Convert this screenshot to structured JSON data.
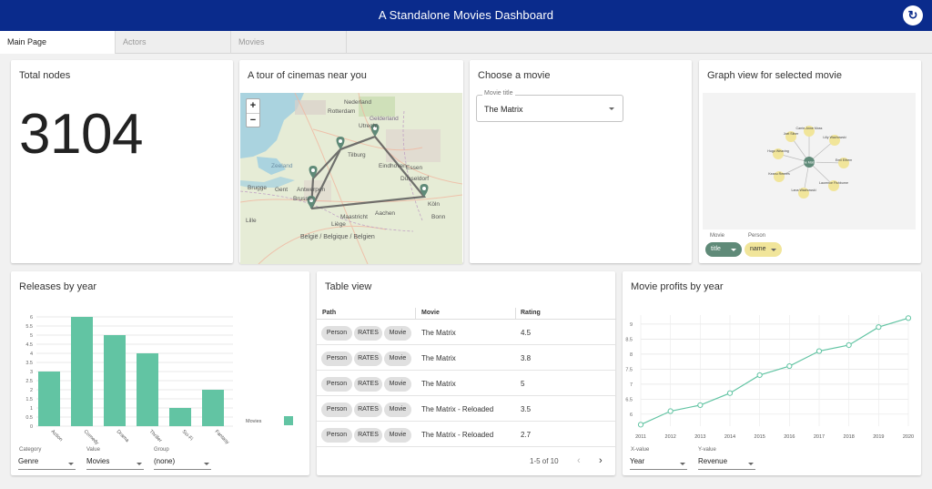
{
  "header": {
    "title": "A Standalone Movies Dashboard",
    "refresh_icon": "refresh-icon"
  },
  "tabs": [
    {
      "label": "Main Page",
      "active": true
    },
    {
      "label": "Actors",
      "active": false
    },
    {
      "label": "Movies",
      "active": false
    }
  ],
  "total_nodes": {
    "title": "Total nodes",
    "value": "3104"
  },
  "map_card": {
    "title": "A tour of cinemas near you",
    "zoom_in": "+",
    "zoom_out": "−",
    "places": [
      {
        "name": "Rotterdam"
      },
      {
        "name": "Nederland"
      },
      {
        "name": "Utrecht"
      },
      {
        "name": "Gelderland"
      },
      {
        "name": "Zeeland"
      },
      {
        "name": "Tilburg"
      },
      {
        "name": "Eindhoven"
      },
      {
        "name": "Antwerpen"
      },
      {
        "name": "Brussel"
      },
      {
        "name": "Gent"
      },
      {
        "name": "Brugge"
      },
      {
        "name": "Essen"
      },
      {
        "name": "Düsseldorf"
      },
      {
        "name": "Köln"
      },
      {
        "name": "Bonn"
      },
      {
        "name": "Maastricht"
      },
      {
        "name": "Aachen"
      },
      {
        "name": "Liège"
      },
      {
        "name": "België / Belgique / Belgien"
      },
      {
        "name": "Lille"
      }
    ]
  },
  "choose_movie": {
    "title": "Choose a movie",
    "field_label": "Movie title",
    "value": "The Matrix"
  },
  "graph_view": {
    "title": "Graph view for selected movie",
    "center": "The Matrix",
    "people": [
      "Carrie-Anne Moss",
      "Lilly Wachowski",
      "Emil Eifrem",
      "Laurence Fishburne",
      "Lana Wachowski",
      "Keanu Reeves",
      "Hugo Weaving",
      "Joel Silver"
    ],
    "movie_label": "Movie",
    "movie_value": "title",
    "person_label": "Person",
    "person_value": "name",
    "movie_color": "#5f8a78",
    "person_color": "#f1e59a"
  },
  "releases": {
    "title": "Releases by year",
    "controls": [
      {
        "label": "Category",
        "value": "Genre"
      },
      {
        "label": "Value",
        "value": "Movies"
      },
      {
        "label": "Group",
        "value": "(none)"
      }
    ],
    "legend_label": "Movies"
  },
  "table_view": {
    "title": "Table view",
    "columns": [
      "Path",
      "Movie",
      "Rating"
    ],
    "rows": [
      {
        "path": [
          "Person",
          "RATES",
          "Movie"
        ],
        "movie": "The Matrix",
        "rating": "4.5"
      },
      {
        "path": [
          "Person",
          "RATES",
          "Movie"
        ],
        "movie": "The Matrix",
        "rating": "3.8"
      },
      {
        "path": [
          "Person",
          "RATES",
          "Movie"
        ],
        "movie": "The Matrix",
        "rating": "5"
      },
      {
        "path": [
          "Person",
          "RATES",
          "Movie"
        ],
        "movie": "The Matrix - Reloaded",
        "rating": "3.5"
      },
      {
        "path": [
          "Person",
          "RATES",
          "Movie"
        ],
        "movie": "The Matrix - Reloaded",
        "rating": "2.7"
      }
    ],
    "pagination": "1-5 of 10",
    "prev_icon": "chevron-left-icon",
    "next_icon": "chevron-right-icon"
  },
  "profits": {
    "title": "Movie profits by year",
    "controls": [
      {
        "label": "X-value",
        "value": "Year"
      },
      {
        "label": "Y-value",
        "value": "Revenue"
      }
    ]
  },
  "chart_data": [
    {
      "type": "bar",
      "categories": [
        "Action",
        "Comedy",
        "Drama",
        "Thriller",
        "Sci-Fi",
        "Fantasy"
      ],
      "tick_labels": [
        "Action",
        "Comedy",
        "Drama",
        "Thriller",
        "Sci-Fi",
        "Fantasy"
      ],
      "series": [
        {
          "name": "Movies",
          "values": [
            3,
            6,
            5,
            4,
            1,
            2
          ]
        }
      ],
      "ylim": [
        0,
        6
      ],
      "yticks": [
        "0",
        "0.5",
        "1",
        "1.5",
        "2",
        "2.5",
        "3",
        "3.5",
        "4",
        "4.5",
        "5",
        "5.5",
        "6"
      ],
      "grid": true,
      "legend": "right",
      "color": "#62c4a3"
    },
    {
      "type": "line",
      "x": [
        "2011",
        "2012",
        "2013",
        "2014",
        "2015",
        "2016",
        "2017",
        "2018",
        "2019",
        "2020"
      ],
      "values": [
        5.65,
        6.1,
        6.3,
        6.7,
        7.3,
        7.6,
        8.1,
        8.3,
        8.9,
        9.2
      ],
      "ylim": [
        5.6,
        9.3
      ],
      "yticks": [
        "6",
        "6.5",
        "7",
        "7.5",
        "8",
        "8.5",
        "9"
      ],
      "grid": true,
      "color": "#62c4a3"
    }
  ]
}
